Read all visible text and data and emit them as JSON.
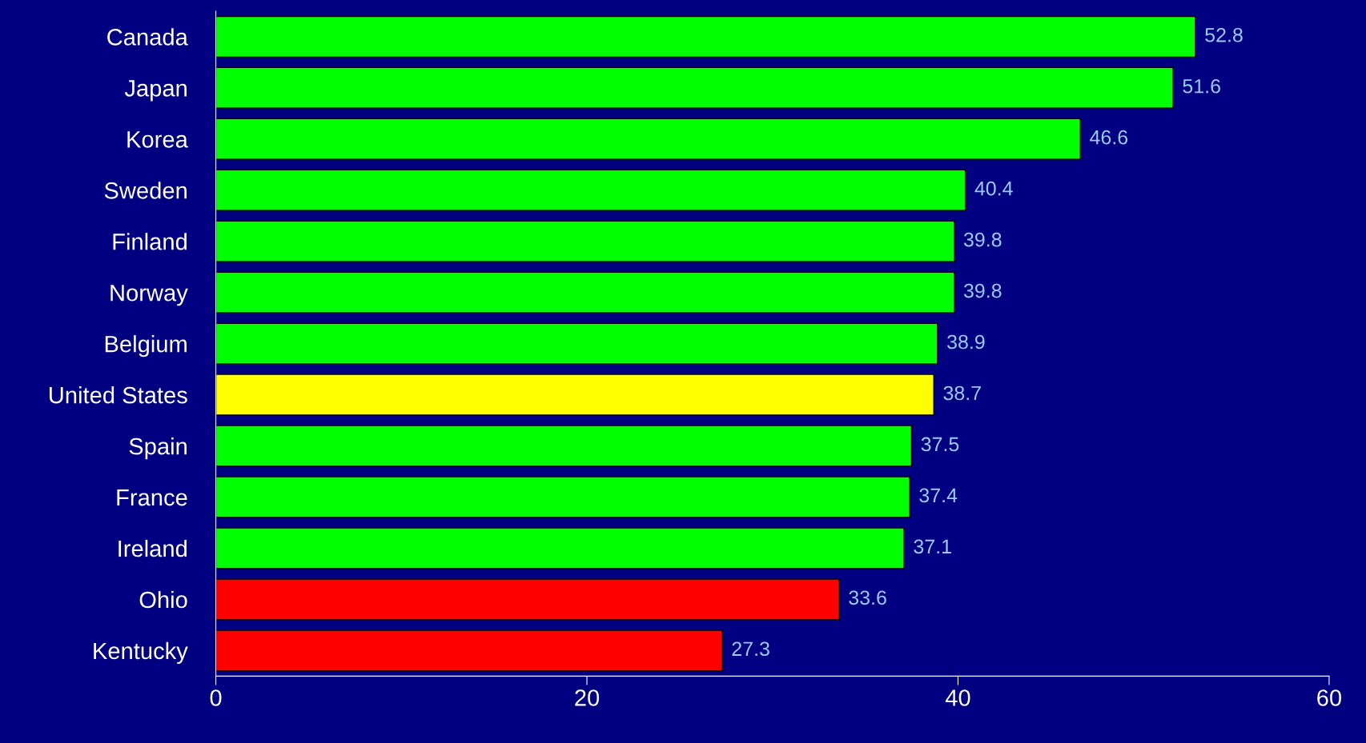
{
  "chart_data": {
    "type": "bar",
    "orientation": "horizontal",
    "categories": [
      "Canada",
      "Japan",
      "Korea",
      "Sweden",
      "Finland",
      "Norway",
      "Belgium",
      "United States",
      "Spain",
      "France",
      "Ireland",
      "Ohio",
      "Kentucky"
    ],
    "values": [
      52.8,
      51.6,
      46.6,
      40.4,
      39.8,
      39.8,
      38.9,
      38.7,
      37.5,
      37.4,
      37.1,
      33.6,
      27.3
    ],
    "colors": [
      "#00ff00",
      "#00ff00",
      "#00ff00",
      "#00ff00",
      "#00ff00",
      "#00ff00",
      "#00ff00",
      "#ffff00",
      "#00ff00",
      "#00ff00",
      "#00ff00",
      "#ff0000",
      "#ff0000"
    ],
    "data_labels": true,
    "xlim": [
      0,
      60
    ],
    "xticks": [
      0,
      20,
      40,
      60
    ],
    "grid": false,
    "legend": false
  }
}
